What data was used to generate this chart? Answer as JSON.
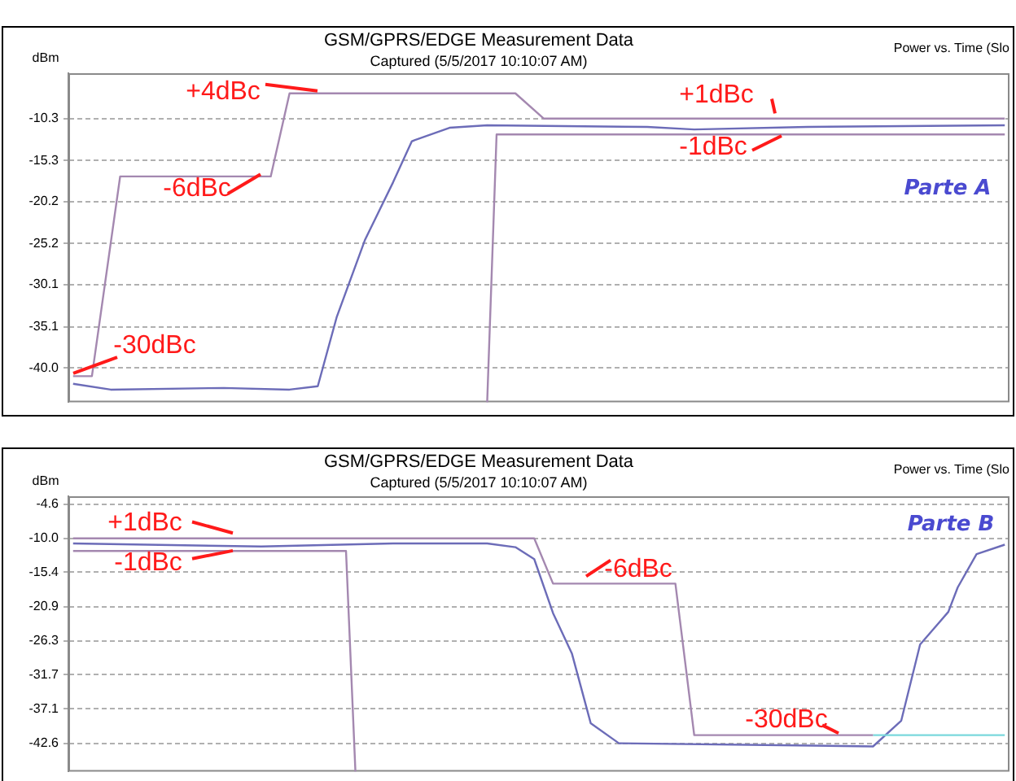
{
  "chart_data": [
    {
      "type": "line",
      "title": "GSM/GPRS/EDGE Measurement Data",
      "subtitle": "Captured (5/5/2017 10:10:07 AM)",
      "ylabel": "dBm",
      "categories": [
        null,
        null,
        null,
        null,
        null,
        null,
        null,
        null,
        null,
        null,
        null,
        null,
        null,
        null,
        null,
        null,
        null,
        null,
        null,
        null,
        null,
        null,
        null,
        null,
        null,
        null,
        null,
        null,
        null,
        null,
        null,
        null,
        null,
        null,
        null,
        null,
        null,
        null,
        null,
        null,
        null,
        null,
        null,
        null,
        null,
        null,
        null,
        null,
        null,
        null,
        null,
        null,
        null,
        null,
        null,
        null,
        null,
        null,
        null,
        null,
        null,
        null,
        null,
        null,
        null,
        null,
        null,
        null,
        null,
        null,
        null,
        null,
        null,
        null,
        null,
        null,
        null,
        null,
        null,
        null,
        null,
        null,
        null,
        null,
        null,
        null,
        null,
        null,
        null,
        null,
        null,
        null,
        null,
        null,
        null,
        null,
        null,
        null,
        null,
        null
      ],
      "ylim": [
        -44.1,
        -4.9
      ],
      "yticks": [
        -10.3,
        -15.3,
        -20.2,
        -25.2,
        -30.1,
        -35.1,
        {
          "value": -40.0,
          "label": "-40.0"
        }
      ],
      "grid": "y",
      "legend": false,
      "marker": "none",
      "line_style": "solid",
      "tick_labels": "y",
      "series": [
        {
          "color": "#a488b0",
          "values": [
            -41.0,
            null,
            -41.0,
            null,
            null,
            -17.2,
            null,
            null,
            null,
            null,
            null,
            null,
            null,
            null,
            null,
            null,
            null,
            null,
            null,
            null,
            null,
            -17.2,
            null,
            -7.3,
            null,
            null,
            null,
            null,
            null,
            null,
            null,
            null,
            null,
            null,
            null,
            null,
            null,
            null,
            null,
            null,
            null,
            null,
            null,
            null,
            null,
            null,
            null,
            -7.3,
            null,
            null,
            -10.3,
            null,
            null,
            null,
            null,
            null,
            null,
            null,
            null,
            null,
            null,
            null,
            null,
            null,
            null,
            null,
            null,
            null,
            null,
            null,
            null,
            null,
            null,
            null,
            null,
            null,
            null,
            null,
            null,
            null,
            null,
            null,
            null,
            null,
            null,
            null,
            null,
            null,
            null,
            null,
            null,
            null,
            null,
            null,
            null,
            null,
            null,
            null,
            null,
            -10.3
          ]
        },
        {
          "color": "#a488b0",
          "values": [
            null,
            null,
            null,
            null,
            null,
            null,
            null,
            null,
            null,
            null,
            null,
            null,
            null,
            null,
            null,
            null,
            null,
            null,
            null,
            null,
            null,
            null,
            null,
            null,
            null,
            null,
            null,
            null,
            null,
            null,
            null,
            null,
            null,
            null,
            null,
            null,
            null,
            null,
            null,
            null,
            null,
            null,
            null,
            null,
            -44.1,
            -12.2,
            null,
            null,
            null,
            null,
            null,
            null,
            null,
            null,
            null,
            null,
            null,
            null,
            null,
            null,
            null,
            null,
            null,
            null,
            null,
            null,
            null,
            null,
            null,
            null,
            null,
            null,
            null,
            null,
            null,
            null,
            null,
            null,
            null,
            null,
            null,
            null,
            null,
            null,
            null,
            null,
            null,
            null,
            null,
            null,
            null,
            null,
            null,
            null,
            null,
            null,
            null,
            null,
            null,
            -12.2
          ]
        },
        {
          "color": "#6c6cb8",
          "values": [
            -41.9,
            null,
            null,
            null,
            -42.6,
            null,
            null,
            null,
            null,
            null,
            null,
            null,
            null,
            null,
            null,
            null,
            -42.4,
            null,
            null,
            null,
            null,
            null,
            null,
            -42.6,
            null,
            null,
            -42.2,
            null,
            -34.0,
            null,
            null,
            -24.8,
            null,
            null,
            -17.9,
            null,
            -13.0,
            null,
            null,
            null,
            -11.4,
            null,
            null,
            null,
            -11.1,
            null,
            null,
            null,
            null,
            null,
            null,
            null,
            null,
            null,
            null,
            null,
            null,
            null,
            null,
            null,
            null,
            -11.3,
            null,
            null,
            null,
            null,
            -11.6,
            null,
            null,
            null,
            null,
            null,
            null,
            null,
            null,
            null,
            null,
            null,
            -11.3,
            null,
            null,
            null,
            null,
            null,
            null,
            null,
            null,
            null,
            null,
            null,
            null,
            null,
            null,
            null,
            null,
            null,
            null,
            null,
            null,
            -11.1
          ]
        }
      ],
      "annotations": [
        "+4dBc",
        "-6dBc",
        "-30dBc",
        "+1dBc",
        "-1dBc",
        "Parte A",
        "Power vs. Time (Slo"
      ]
    },
    {
      "type": "line",
      "title": "GSM/GPRS/EDGE Measurement Data",
      "subtitle": "Captured (5/5/2017 10:10:07 AM)",
      "ylabel": "dBm",
      "categories": [
        null,
        null,
        null,
        null,
        null,
        null,
        null,
        null,
        null,
        null,
        null,
        null,
        null,
        null,
        null,
        null,
        null,
        null,
        null,
        null,
        null,
        null,
        null,
        null,
        null,
        null,
        null,
        null,
        null,
        null,
        null,
        null,
        null,
        null,
        null,
        null,
        null,
        null,
        null,
        null,
        null,
        null,
        null,
        null,
        null,
        null,
        null,
        null,
        null,
        null,
        null,
        null,
        null,
        null,
        null,
        null,
        null,
        null,
        null,
        null,
        null,
        null,
        null,
        null,
        null,
        null,
        null,
        null,
        null,
        null,
        null,
        null,
        null,
        null,
        null,
        null,
        null,
        null,
        null,
        null,
        null,
        null,
        null,
        null,
        null,
        null,
        null,
        null,
        null,
        null,
        null,
        null,
        null,
        null,
        null,
        null,
        null,
        null,
        null,
        null
      ],
      "ylim": [
        -47.1,
        -3.3
      ],
      "yticks": [
        -4.6,
        {
          "value": -10.0,
          "label": "-10.0"
        },
        -15.4,
        -20.9,
        -26.3,
        -31.7,
        -37.1,
        -42.6
      ],
      "grid": "y",
      "legend": false,
      "marker": "none",
      "line_style": "solid",
      "tick_labels": "y",
      "series": [
        {
          "color": "#a488b0",
          "values": [
            -10.0,
            null,
            null,
            null,
            null,
            null,
            null,
            null,
            null,
            null,
            null,
            null,
            null,
            null,
            null,
            null,
            null,
            null,
            null,
            null,
            null,
            null,
            null,
            null,
            null,
            null,
            null,
            null,
            null,
            null,
            null,
            null,
            null,
            null,
            null,
            null,
            null,
            null,
            null,
            null,
            null,
            null,
            null,
            null,
            null,
            null,
            null,
            null,
            null,
            -10.0,
            null,
            -17.2,
            null,
            null,
            null,
            null,
            null,
            null,
            null,
            null,
            null,
            null,
            null,
            null,
            -17.2,
            null,
            -41.3,
            null,
            null,
            null,
            null,
            null,
            null,
            null,
            null,
            null,
            null,
            null,
            null,
            null,
            null,
            null,
            null,
            null,
            null,
            -41.3,
            null,
            null,
            null,
            null,
            null,
            null,
            null,
            null,
            null,
            null,
            null,
            null,
            null,
            null
          ]
        },
        {
          "color": "#7ad8dc",
          "values": [
            null,
            null,
            null,
            null,
            null,
            null,
            null,
            null,
            null,
            null,
            null,
            null,
            null,
            null,
            null,
            null,
            null,
            null,
            null,
            null,
            null,
            null,
            null,
            null,
            null,
            null,
            null,
            null,
            null,
            null,
            null,
            null,
            null,
            null,
            null,
            null,
            null,
            null,
            null,
            null,
            null,
            null,
            null,
            null,
            null,
            null,
            null,
            null,
            null,
            null,
            null,
            null,
            null,
            null,
            null,
            null,
            null,
            null,
            null,
            null,
            null,
            null,
            null,
            null,
            null,
            null,
            null,
            null,
            null,
            null,
            null,
            null,
            null,
            null,
            null,
            null,
            null,
            null,
            null,
            null,
            null,
            null,
            null,
            null,
            null,
            -41.3,
            null,
            null,
            null,
            null,
            null,
            null,
            null,
            null,
            null,
            null,
            null,
            null,
            null,
            -41.3
          ]
        },
        {
          "color": "#a488b0",
          "values": [
            -12.0,
            null,
            null,
            null,
            null,
            null,
            null,
            null,
            null,
            null,
            null,
            null,
            null,
            null,
            null,
            null,
            null,
            null,
            null,
            null,
            null,
            null,
            null,
            null,
            null,
            null,
            null,
            null,
            null,
            -12.0,
            -47.1,
            null,
            null,
            null,
            null,
            null,
            null,
            null,
            null,
            null,
            null,
            null,
            null,
            null,
            null,
            null,
            null,
            null,
            null,
            null,
            null,
            null,
            null,
            null,
            null,
            null,
            null,
            null,
            null,
            null,
            null,
            null,
            null,
            null,
            null,
            null,
            null,
            null,
            null,
            null,
            null,
            null,
            null,
            null,
            null,
            null,
            null,
            null,
            null,
            null,
            null,
            null,
            null,
            null,
            null,
            null,
            null,
            null,
            null,
            null,
            null,
            null,
            null,
            null,
            null,
            null,
            null,
            null,
            null,
            null
          ]
        },
        {
          "color": "#6c6cb8",
          "values": [
            -10.8,
            null,
            null,
            null,
            null,
            null,
            null,
            null,
            null,
            null,
            null,
            null,
            null,
            null,
            null,
            null,
            null,
            null,
            null,
            null,
            -11.3,
            null,
            null,
            null,
            null,
            null,
            null,
            null,
            null,
            null,
            null,
            null,
            null,
            null,
            -10.8,
            null,
            null,
            null,
            null,
            null,
            null,
            null,
            null,
            null,
            -10.8,
            null,
            null,
            -11.4,
            null,
            -13.3,
            null,
            -21.9,
            null,
            -28.3,
            null,
            -39.4,
            null,
            null,
            -42.6,
            null,
            null,
            null,
            null,
            null,
            null,
            null,
            null,
            null,
            null,
            null,
            null,
            null,
            null,
            null,
            null,
            null,
            null,
            null,
            null,
            null,
            null,
            null,
            null,
            null,
            null,
            -43.1,
            null,
            null,
            -39.0,
            null,
            -26.9,
            null,
            null,
            -21.7,
            -17.8,
            null,
            -12.5,
            null,
            null,
            -11.0
          ]
        }
      ],
      "annotations": [
        "+1dBc",
        "-1dBc",
        "-6dBc",
        "-30dBc",
        "Parte B",
        "Power vs. Time (Slo"
      ]
    }
  ]
}
